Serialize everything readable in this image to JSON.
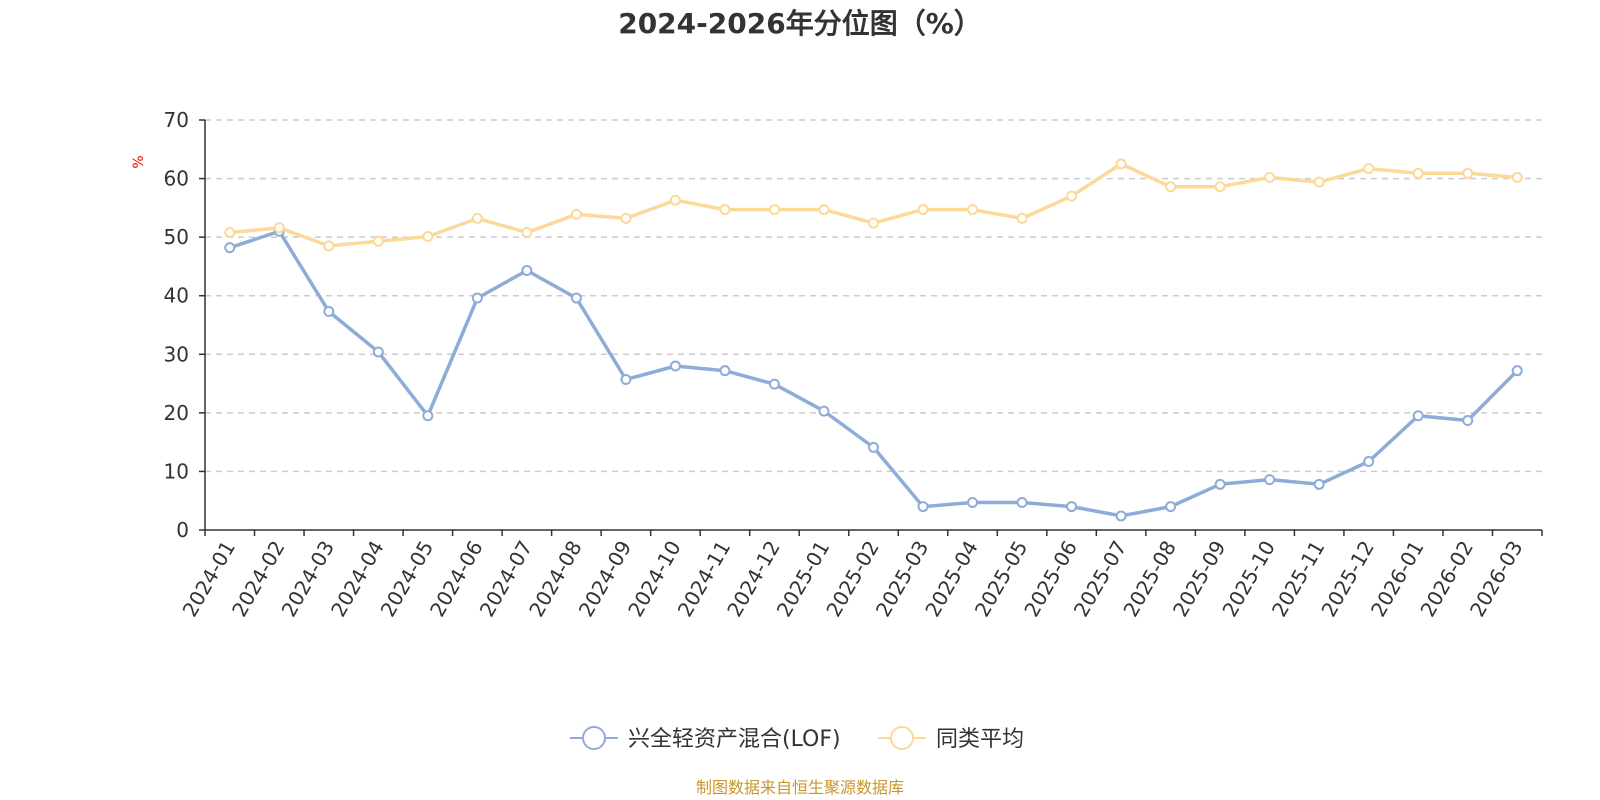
{
  "colors": {
    "series_1": "#8eacd8",
    "series_2": "#fcd998",
    "unit": "#ff0000",
    "source": "#c8962c",
    "axis": "#333333",
    "grid": "#cccccc"
  },
  "source_text": "制图数据来自恒生聚源数据库",
  "chart_data": {
    "type": "line",
    "title": "2024-2026年分位图（%）",
    "ylabel": "%",
    "xlabel": "",
    "ylim": [
      0,
      70
    ],
    "yticks": [
      "0",
      "10",
      "20",
      "30",
      "40",
      "50",
      "60",
      "70"
    ],
    "grid": "horizontal dashed",
    "legend": "bottom-center",
    "categories": [
      "2024-01",
      "2024-02",
      "2024-03",
      "2024-04",
      "2024-05",
      "2024-06",
      "2024-07",
      "2024-08",
      "2024-09",
      "2024-10",
      "2024-11",
      "2024-12",
      "2025-01",
      "2025-02",
      "2025-03",
      "2025-04",
      "2025-05",
      "2025-06",
      "2025-07",
      "2025-08",
      "2025-09",
      "2025-10",
      "2025-11",
      "2025-12",
      "2026-01",
      "2026-02",
      "2026-03"
    ],
    "series": [
      {
        "name": "兴全轻资产混合(LOF)",
        "color": "#8eacd8",
        "values": [
          48.2,
          51.0,
          37.3,
          30.4,
          19.5,
          39.6,
          44.3,
          39.6,
          25.7,
          28.0,
          27.2,
          24.9,
          20.3,
          14.1,
          4.0,
          4.7,
          4.7,
          4.0,
          2.4,
          4.0,
          7.8,
          8.6,
          7.8,
          11.7,
          19.5,
          18.7,
          27.2
        ]
      },
      {
        "name": "同类平均",
        "color": "#fcd998",
        "values": [
          50.8,
          51.6,
          48.5,
          49.3,
          50.1,
          53.2,
          50.8,
          53.9,
          53.2,
          56.3,
          54.7,
          54.7,
          54.7,
          52.4,
          54.7,
          54.7,
          53.2,
          57.0,
          62.5,
          58.6,
          58.6,
          60.2,
          59.4,
          61.7,
          60.9,
          60.9,
          60.2
        ]
      }
    ]
  }
}
